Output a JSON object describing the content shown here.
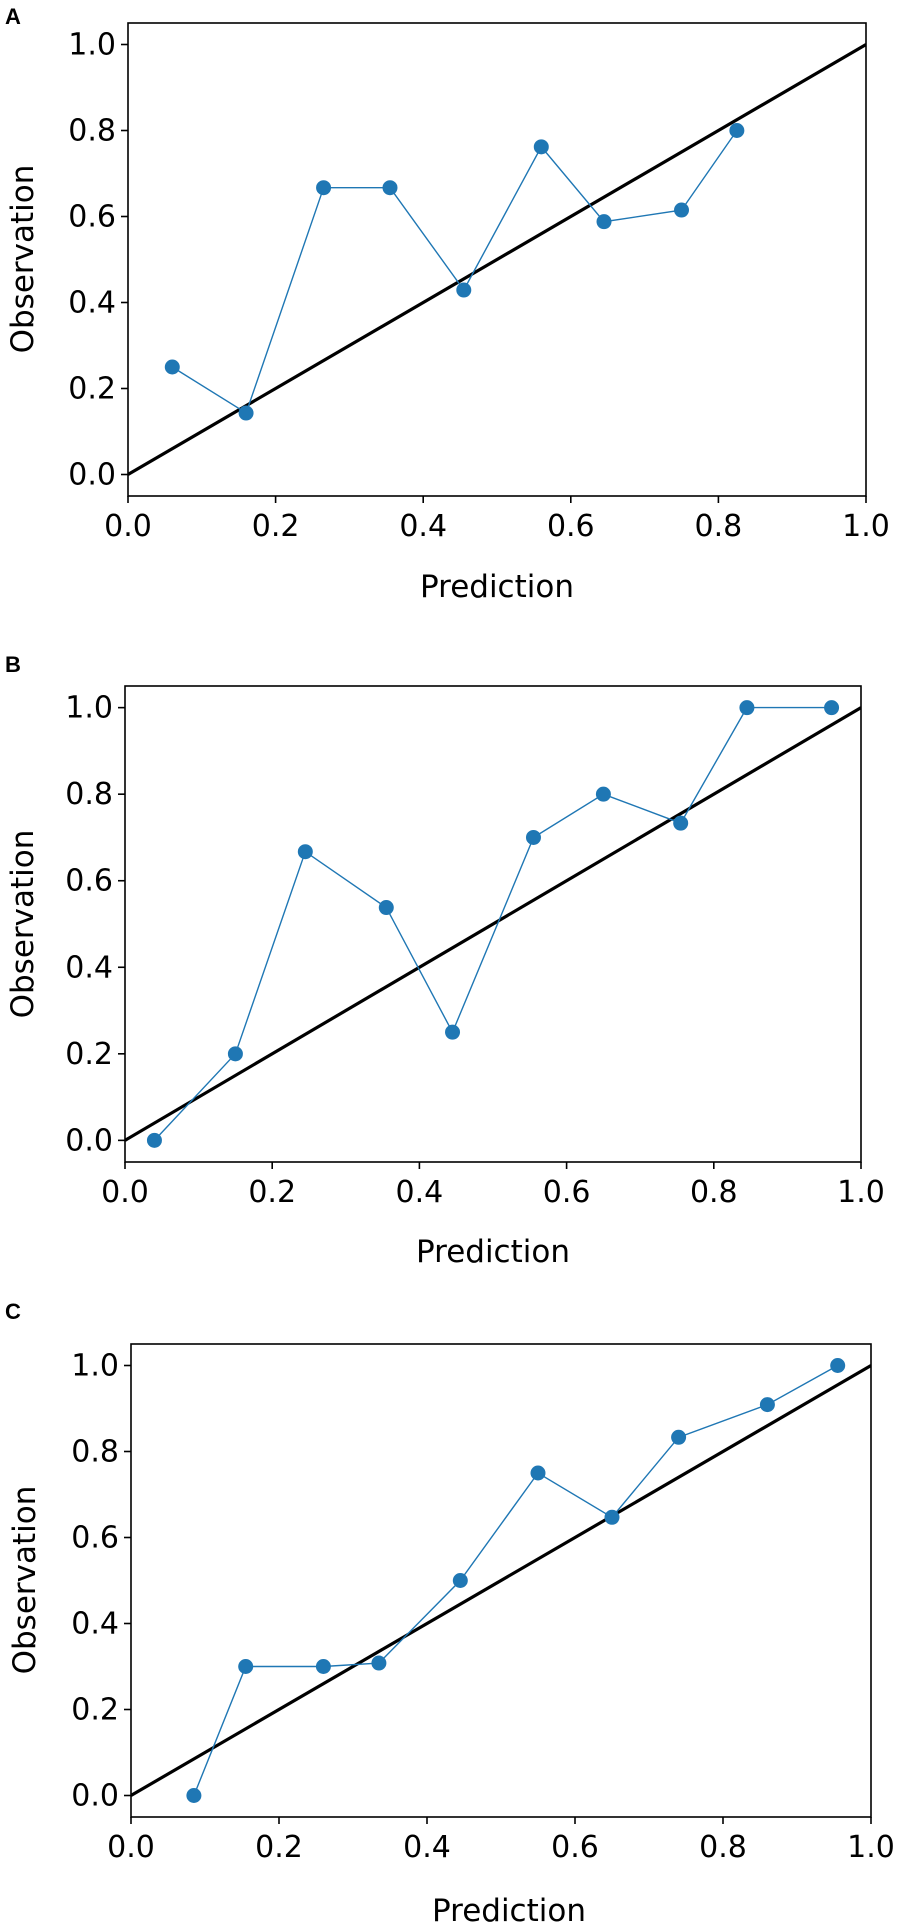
{
  "chart_data": [
    {
      "type": "line",
      "panel_label": "A",
      "xlabel": "Prediction",
      "ylabel": "Observation",
      "xlim": [
        0.0,
        1.0
      ],
      "ylim": [
        -0.05,
        1.05
      ],
      "xticks": [
        "0.0",
        "0.2",
        "0.4",
        "0.6",
        "0.8",
        "1.0"
      ],
      "yticks": [
        "0.0",
        "0.2",
        "0.4",
        "0.6",
        "0.8",
        "1.0"
      ],
      "series": [
        {
          "x": [
            0.06,
            0.16,
            0.265,
            0.355,
            0.455,
            0.56,
            0.645,
            0.75,
            0.825
          ],
          "y": [
            0.25,
            0.143,
            0.667,
            0.667,
            0.429,
            0.762,
            0.588,
            0.615,
            0.8
          ]
        }
      ],
      "reference_line": {
        "x": [
          0.0,
          1.0
        ],
        "y": [
          0.0,
          1.0
        ]
      }
    },
    {
      "type": "line",
      "panel_label": "B",
      "xlabel": "Prediction",
      "ylabel": "Observation",
      "xlim": [
        0.0,
        1.0
      ],
      "ylim": [
        -0.05,
        1.05
      ],
      "xticks": [
        "0.0",
        "0.2",
        "0.4",
        "0.6",
        "0.8",
        "1.0"
      ],
      "yticks": [
        "0.0",
        "0.2",
        "0.4",
        "0.6",
        "0.8",
        "1.0"
      ],
      "series": [
        {
          "x": [
            0.04,
            0.15,
            0.245,
            0.355,
            0.445,
            0.555,
            0.65,
            0.755,
            0.845,
            0.96
          ],
          "y": [
            0.0,
            0.2,
            0.667,
            0.538,
            0.25,
            0.7,
            0.8,
            0.733,
            1.0,
            1.0
          ]
        }
      ],
      "reference_line": {
        "x": [
          0.0,
          1.0
        ],
        "y": [
          0.0,
          1.0
        ]
      }
    },
    {
      "type": "line",
      "panel_label": "C",
      "xlabel": "Prediction",
      "ylabel": "Observation",
      "xlim": [
        0.0,
        1.0
      ],
      "ylim": [
        -0.05,
        1.05
      ],
      "xticks": [
        "0.0",
        "0.2",
        "0.4",
        "0.6",
        "0.8",
        "1.0"
      ],
      "yticks": [
        "0.0",
        "0.2",
        "0.4",
        "0.6",
        "0.8",
        "1.0"
      ],
      "series": [
        {
          "x": [
            0.085,
            0.155,
            0.26,
            0.335,
            0.445,
            0.55,
            0.65,
            0.74,
            0.86,
            0.955
          ],
          "y": [
            0.0,
            0.3,
            0.3,
            0.308,
            0.5,
            0.75,
            0.647,
            0.833,
            0.909,
            1.0
          ]
        }
      ],
      "reference_line": {
        "x": [
          0.0,
          1.0
        ],
        "y": [
          0.0,
          1.0
        ]
      }
    }
  ]
}
